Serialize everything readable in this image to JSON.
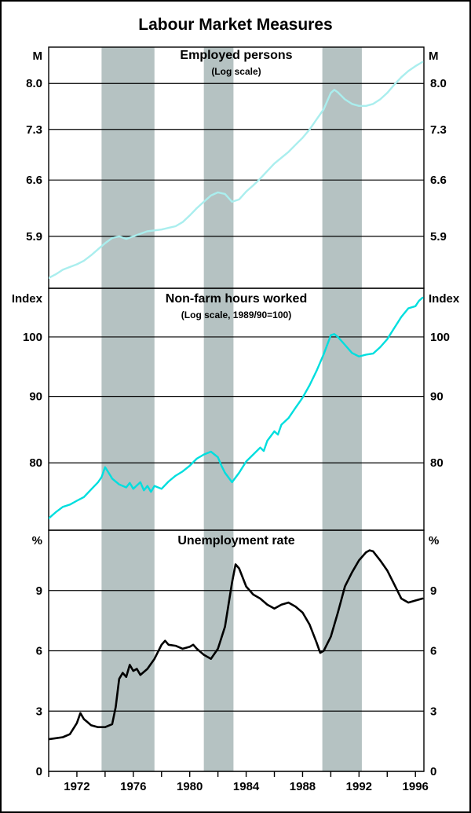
{
  "chart_data": {
    "type": "line",
    "title": "Labour Market Measures",
    "x_axis": {
      "min": 1970,
      "max": 1996.6,
      "tick_years": [
        1972,
        1976,
        1980,
        1984,
        1988,
        1992,
        1996
      ],
      "minor_tick_step": 2
    },
    "recession_bands": [
      [
        1973.75,
        1977.5
      ],
      [
        1981.0,
        1983.1
      ],
      [
        1989.4,
        1992.2
      ]
    ],
    "colors": {
      "band": "#b5c2c2",
      "grid": "#000000",
      "border": "#000000",
      "background": "#ffffff"
    },
    "panels": [
      {
        "name": "employed-persons",
        "title": "Employed persons",
        "subtitle": "(Log scale)",
        "unit": "M",
        "scale": "log",
        "range": [
          5.32,
          8.6
        ],
        "ticks": [
          5.9,
          6.6,
          7.3,
          8.0
        ],
        "tick_labels": [
          "5.9",
          "6.6",
          "7.3",
          "8.0"
        ],
        "color": "#aaeeee",
        "line_width": 2.4,
        "series": [
          [
            1970.0,
            5.43
          ],
          [
            1970.5,
            5.47
          ],
          [
            1971.0,
            5.52
          ],
          [
            1971.5,
            5.55
          ],
          [
            1972.0,
            5.58
          ],
          [
            1972.5,
            5.62
          ],
          [
            1973.0,
            5.68
          ],
          [
            1973.5,
            5.75
          ],
          [
            1974.0,
            5.82
          ],
          [
            1974.5,
            5.88
          ],
          [
            1975.0,
            5.9
          ],
          [
            1975.5,
            5.87
          ],
          [
            1976.0,
            5.9
          ],
          [
            1976.5,
            5.93
          ],
          [
            1977.0,
            5.96
          ],
          [
            1977.5,
            5.97
          ],
          [
            1978.0,
            5.98
          ],
          [
            1978.5,
            6.0
          ],
          [
            1979.0,
            6.02
          ],
          [
            1979.5,
            6.07
          ],
          [
            1980.0,
            6.15
          ],
          [
            1980.5,
            6.24
          ],
          [
            1981.0,
            6.32
          ],
          [
            1981.5,
            6.4
          ],
          [
            1982.0,
            6.44
          ],
          [
            1982.5,
            6.42
          ],
          [
            1983.0,
            6.32
          ],
          [
            1983.5,
            6.35
          ],
          [
            1984.0,
            6.45
          ],
          [
            1984.5,
            6.53
          ],
          [
            1985.0,
            6.62
          ],
          [
            1985.5,
            6.72
          ],
          [
            1986.0,
            6.82
          ],
          [
            1986.5,
            6.9
          ],
          [
            1987.0,
            6.98
          ],
          [
            1987.5,
            7.08
          ],
          [
            1988.0,
            7.18
          ],
          [
            1988.5,
            7.3
          ],
          [
            1989.0,
            7.45
          ],
          [
            1989.5,
            7.6
          ],
          [
            1990.0,
            7.85
          ],
          [
            1990.25,
            7.9
          ],
          [
            1990.5,
            7.86
          ],
          [
            1991.0,
            7.75
          ],
          [
            1991.5,
            7.68
          ],
          [
            1992.0,
            7.65
          ],
          [
            1992.5,
            7.65
          ],
          [
            1993.0,
            7.68
          ],
          [
            1993.5,
            7.75
          ],
          [
            1994.0,
            7.85
          ],
          [
            1994.5,
            7.98
          ],
          [
            1995.0,
            8.1
          ],
          [
            1995.5,
            8.2
          ],
          [
            1996.0,
            8.28
          ],
          [
            1996.5,
            8.35
          ]
        ]
      },
      {
        "name": "non-farm-hours-worked",
        "title": "Non-farm hours worked",
        "subtitle": "(Log scale, 1989/90=100)",
        "unit": "Index",
        "scale": "log",
        "range": [
          71,
          109
        ],
        "ticks": [
          80,
          90,
          100
        ],
        "tick_labels": [
          "80",
          "90",
          "100"
        ],
        "color": "#00dede",
        "line_width": 2.4,
        "series": [
          [
            1970.0,
            72.5
          ],
          [
            1970.5,
            73.3
          ],
          [
            1971.0,
            74.0
          ],
          [
            1971.5,
            74.3
          ],
          [
            1972.0,
            74.8
          ],
          [
            1972.5,
            75.3
          ],
          [
            1973.0,
            76.3
          ],
          [
            1973.5,
            77.3
          ],
          [
            1973.75,
            78.0
          ],
          [
            1974.0,
            79.4
          ],
          [
            1974.25,
            78.6
          ],
          [
            1974.5,
            77.8
          ],
          [
            1975.0,
            77.0
          ],
          [
            1975.5,
            76.6
          ],
          [
            1975.75,
            77.2
          ],
          [
            1976.0,
            76.4
          ],
          [
            1976.5,
            77.3
          ],
          [
            1976.75,
            76.2
          ],
          [
            1977.0,
            76.8
          ],
          [
            1977.25,
            76.0
          ],
          [
            1977.5,
            76.8
          ],
          [
            1978.0,
            76.4
          ],
          [
            1978.5,
            77.4
          ],
          [
            1979.0,
            78.2
          ],
          [
            1979.5,
            78.8
          ],
          [
            1980.0,
            79.6
          ],
          [
            1980.5,
            80.6
          ],
          [
            1981.0,
            81.2
          ],
          [
            1981.5,
            81.6
          ],
          [
            1982.0,
            80.8
          ],
          [
            1982.25,
            79.6
          ],
          [
            1982.5,
            78.6
          ],
          [
            1983.0,
            77.3
          ],
          [
            1983.5,
            78.6
          ],
          [
            1984.0,
            80.2
          ],
          [
            1984.5,
            81.2
          ],
          [
            1985.0,
            82.2
          ],
          [
            1985.25,
            81.7
          ],
          [
            1985.5,
            83.2
          ],
          [
            1986.0,
            84.6
          ],
          [
            1986.25,
            84.1
          ],
          [
            1986.5,
            85.6
          ],
          [
            1987.0,
            86.6
          ],
          [
            1987.5,
            88.2
          ],
          [
            1988.0,
            89.8
          ],
          [
            1988.5,
            91.8
          ],
          [
            1989.0,
            94.2
          ],
          [
            1989.5,
            97.0
          ],
          [
            1990.0,
            100.3
          ],
          [
            1990.25,
            100.5
          ],
          [
            1990.5,
            100.0
          ],
          [
            1991.0,
            98.6
          ],
          [
            1991.5,
            97.2
          ],
          [
            1992.0,
            96.6
          ],
          [
            1992.5,
            96.9
          ],
          [
            1993.0,
            97.1
          ],
          [
            1993.5,
            98.2
          ],
          [
            1994.0,
            99.6
          ],
          [
            1994.5,
            101.6
          ],
          [
            1995.0,
            103.6
          ],
          [
            1995.5,
            105.2
          ],
          [
            1996.0,
            105.6
          ],
          [
            1996.25,
            106.6
          ],
          [
            1996.5,
            107.2
          ]
        ]
      },
      {
        "name": "unemployment-rate",
        "title": "Unemployment rate",
        "subtitle": "",
        "unit": "%",
        "scale": "linear",
        "range": [
          0,
          12
        ],
        "ticks": [
          0,
          3,
          6,
          9
        ],
        "tick_labels": [
          "0",
          "3",
          "6",
          "9"
        ],
        "color": "#000000",
        "line_width": 2.6,
        "series": [
          [
            1970.0,
            1.6
          ],
          [
            1970.5,
            1.65
          ],
          [
            1971.0,
            1.7
          ],
          [
            1971.5,
            1.85
          ],
          [
            1972.0,
            2.4
          ],
          [
            1972.25,
            2.9
          ],
          [
            1972.5,
            2.6
          ],
          [
            1972.75,
            2.45
          ],
          [
            1973.0,
            2.3
          ],
          [
            1973.5,
            2.2
          ],
          [
            1974.0,
            2.2
          ],
          [
            1974.5,
            2.35
          ],
          [
            1974.75,
            3.2
          ],
          [
            1975.0,
            4.6
          ],
          [
            1975.25,
            4.9
          ],
          [
            1975.5,
            4.7
          ],
          [
            1975.75,
            5.3
          ],
          [
            1976.0,
            5.0
          ],
          [
            1976.25,
            5.1
          ],
          [
            1976.5,
            4.8
          ],
          [
            1977.0,
            5.1
          ],
          [
            1977.5,
            5.6
          ],
          [
            1978.0,
            6.3
          ],
          [
            1978.25,
            6.5
          ],
          [
            1978.5,
            6.3
          ],
          [
            1979.0,
            6.25
          ],
          [
            1979.5,
            6.1
          ],
          [
            1980.0,
            6.2
          ],
          [
            1980.25,
            6.3
          ],
          [
            1980.5,
            6.1
          ],
          [
            1981.0,
            5.8
          ],
          [
            1981.5,
            5.6
          ],
          [
            1982.0,
            6.1
          ],
          [
            1982.5,
            7.2
          ],
          [
            1983.0,
            9.4
          ],
          [
            1983.25,
            10.3
          ],
          [
            1983.5,
            10.1
          ],
          [
            1984.0,
            9.2
          ],
          [
            1984.5,
            8.8
          ],
          [
            1985.0,
            8.6
          ],
          [
            1985.5,
            8.3
          ],
          [
            1986.0,
            8.1
          ],
          [
            1986.5,
            8.3
          ],
          [
            1987.0,
            8.4
          ],
          [
            1987.5,
            8.2
          ],
          [
            1988.0,
            7.9
          ],
          [
            1988.5,
            7.3
          ],
          [
            1989.0,
            6.4
          ],
          [
            1989.25,
            5.9
          ],
          [
            1989.5,
            6.0
          ],
          [
            1990.0,
            6.7
          ],
          [
            1990.5,
            7.9
          ],
          [
            1991.0,
            9.2
          ],
          [
            1991.5,
            9.9
          ],
          [
            1992.0,
            10.5
          ],
          [
            1992.5,
            10.9
          ],
          [
            1992.75,
            11.0
          ],
          [
            1993.0,
            10.95
          ],
          [
            1993.5,
            10.5
          ],
          [
            1994.0,
            10.0
          ],
          [
            1994.5,
            9.3
          ],
          [
            1995.0,
            8.6
          ],
          [
            1995.5,
            8.4
          ],
          [
            1996.0,
            8.5
          ],
          [
            1996.5,
            8.6
          ]
        ]
      }
    ]
  }
}
